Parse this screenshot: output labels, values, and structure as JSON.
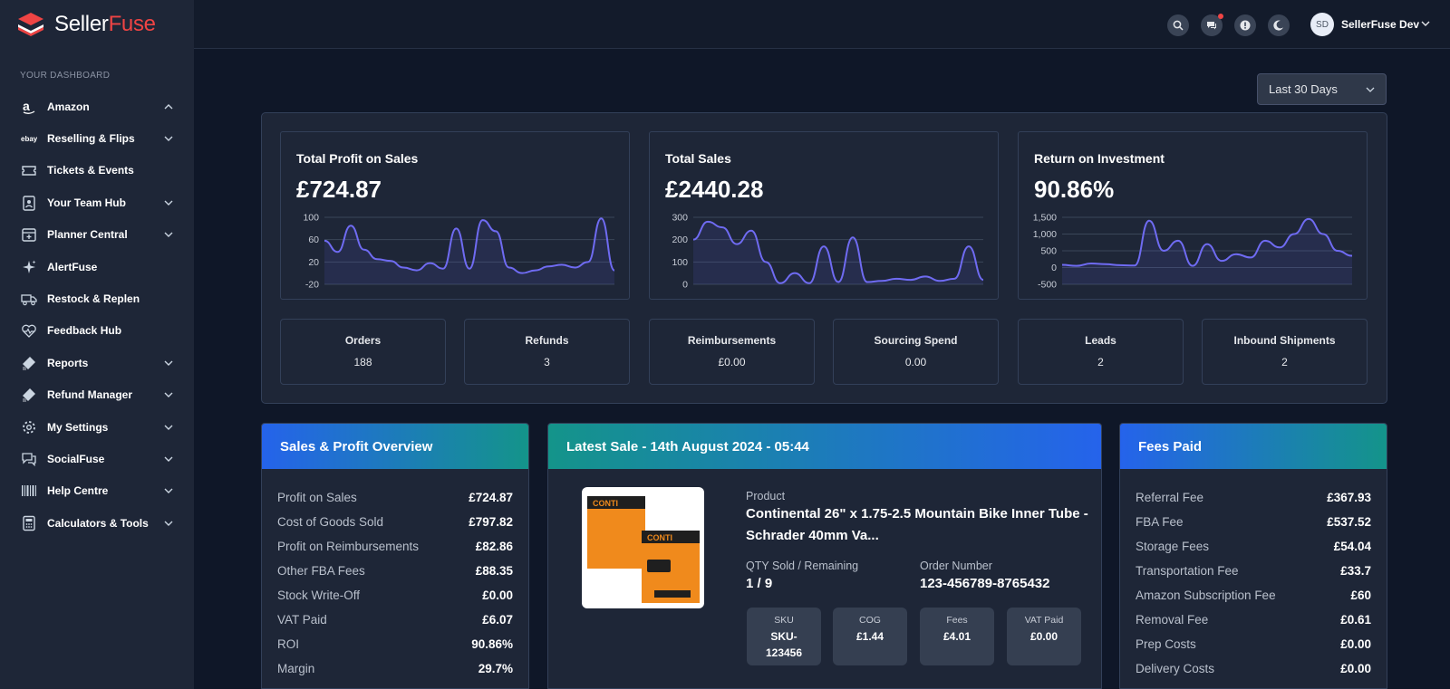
{
  "brand": {
    "part1": "Seller",
    "part2": "Fuse"
  },
  "sidebar": {
    "section_label": "YOUR DASHBOARD",
    "items": [
      {
        "label": "Amazon",
        "icon": "amazon-icon",
        "chevron": "up"
      },
      {
        "label": "Reselling & Flips",
        "icon": "ebay-icon",
        "chevron": "down"
      },
      {
        "label": "Tickets & Events",
        "icon": "ticket-icon",
        "chevron": ""
      },
      {
        "label": "Your Team Hub",
        "icon": "team-icon",
        "chevron": "down"
      },
      {
        "label": "Planner Central",
        "icon": "calendar-icon",
        "chevron": "down"
      },
      {
        "label": "AlertFuse",
        "icon": "sparkle-icon",
        "chevron": ""
      },
      {
        "label": "Restock & Replen",
        "icon": "truck-icon",
        "chevron": ""
      },
      {
        "label": "Feedback Hub",
        "icon": "heartbeat-icon",
        "chevron": ""
      },
      {
        "label": "Reports",
        "icon": "tag-icon",
        "chevron": "down"
      },
      {
        "label": "Refund Manager",
        "icon": "tag-icon",
        "chevron": "down"
      },
      {
        "label": "My Settings",
        "icon": "gear-icon",
        "chevron": "down"
      },
      {
        "label": "SocialFuse",
        "icon": "chat-icon",
        "chevron": "down"
      },
      {
        "label": "Help Centre",
        "icon": "barcode-icon",
        "chevron": "down"
      },
      {
        "label": "Calculators & Tools",
        "icon": "calculator-icon",
        "chevron": "down"
      }
    ]
  },
  "topbar": {
    "user_initials": "SD",
    "user_name": "SellerFuse Dev",
    "icons": [
      "search-icon",
      "chat-icon",
      "alert-icon",
      "moon-icon"
    ]
  },
  "filter": {
    "date_range": "Last 30 Days"
  },
  "kpis": [
    {
      "title": "Total Profit on Sales",
      "value": "£724.87",
      "ticks": [
        "100",
        "60",
        "20",
        "-20"
      ]
    },
    {
      "title": "Total Sales",
      "value": "£2440.28",
      "ticks": [
        "300",
        "200",
        "100",
        "0"
      ]
    },
    {
      "title": "Return on Investment",
      "value": "90.86%",
      "ticks": [
        "1,500",
        "1,000",
        "500",
        "0",
        "-500"
      ]
    }
  ],
  "chart_data": [
    {
      "type": "area",
      "title": "Total Profit on Sales",
      "ylim": [
        -20,
        100
      ],
      "values": [
        58,
        38,
        85,
        42,
        25,
        22,
        10,
        5,
        18,
        8,
        80,
        8,
        95,
        75,
        10,
        0,
        5,
        12,
        15,
        10,
        20,
        98,
        5
      ]
    },
    {
      "type": "area",
      "title": "Total Sales",
      "ylim": [
        0,
        300
      ],
      "values": [
        200,
        280,
        255,
        180,
        240,
        100,
        5,
        50,
        5,
        170,
        10,
        210,
        10,
        15,
        25,
        20,
        35,
        15,
        25,
        170,
        20
      ]
    },
    {
      "type": "area",
      "title": "Return on Investment",
      "ylim": [
        -500,
        1500
      ],
      "values": [
        80,
        50,
        120,
        100,
        70,
        60,
        1400,
        500,
        800,
        50,
        700,
        200,
        400,
        300,
        800,
        600,
        1000,
        1450,
        1000,
        500,
        350
      ]
    }
  ],
  "stats": [
    {
      "title": "Orders",
      "value": "188"
    },
    {
      "title": "Refunds",
      "value": "3"
    },
    {
      "title": "Reimbursements",
      "value": "£0.00"
    },
    {
      "title": "Sourcing Spend",
      "value": "0.00"
    },
    {
      "title": "Leads",
      "value": "2"
    },
    {
      "title": "Inbound Shipments",
      "value": "2"
    }
  ],
  "overview": {
    "title": "Sales & Profit Overview",
    "rows": [
      {
        "k": "Profit on Sales",
        "v": "£724.87"
      },
      {
        "k": "Cost of Goods Sold",
        "v": "£797.82"
      },
      {
        "k": "Profit on Reimbursements",
        "v": "£82.86"
      },
      {
        "k": "Other FBA Fees",
        "v": "£88.35"
      },
      {
        "k": "Stock Write-Off",
        "v": "£0.00"
      },
      {
        "k": "VAT Paid",
        "v": "£6.07"
      },
      {
        "k": "ROI",
        "v": "90.86%"
      },
      {
        "k": "Margin",
        "v": "29.7%"
      }
    ]
  },
  "latest_sale": {
    "title": "Latest Sale - 14th August 2024 - 05:44",
    "product_label": "Product",
    "product_name": "Continental 26\" x 1.75-2.5 Mountain Bike Inner Tube - Schrader 40mm Va...",
    "qty_label": "QTY Sold / Remaining",
    "qty_value": "1 / 9",
    "order_label": "Order Number",
    "order_value": "123-456789-8765432",
    "chips": [
      {
        "t": "SKU",
        "v": "SKU-123456"
      },
      {
        "t": "COG",
        "v": "£1.44"
      },
      {
        "t": "Fees",
        "v": "£4.01"
      },
      {
        "t": "VAT Paid",
        "v": "£0.00"
      }
    ]
  },
  "fees": {
    "title": "Fees Paid",
    "rows": [
      {
        "k": "Referral Fee",
        "v": "£367.93"
      },
      {
        "k": "FBA Fee",
        "v": "£537.52"
      },
      {
        "k": "Storage Fees",
        "v": "£54.04"
      },
      {
        "k": "Transportation Fee",
        "v": "£33.7"
      },
      {
        "k": "Amazon Subscription Fee",
        "v": "£60"
      },
      {
        "k": "Removal Fee",
        "v": "£0.61"
      },
      {
        "k": "Prep Costs",
        "v": "£0.00"
      },
      {
        "k": "Delivery Costs",
        "v": "£0.00"
      }
    ]
  },
  "colors": {
    "accent": "#6366f1",
    "line": "#6f6bf2",
    "brand_red": "#ef4444"
  }
}
